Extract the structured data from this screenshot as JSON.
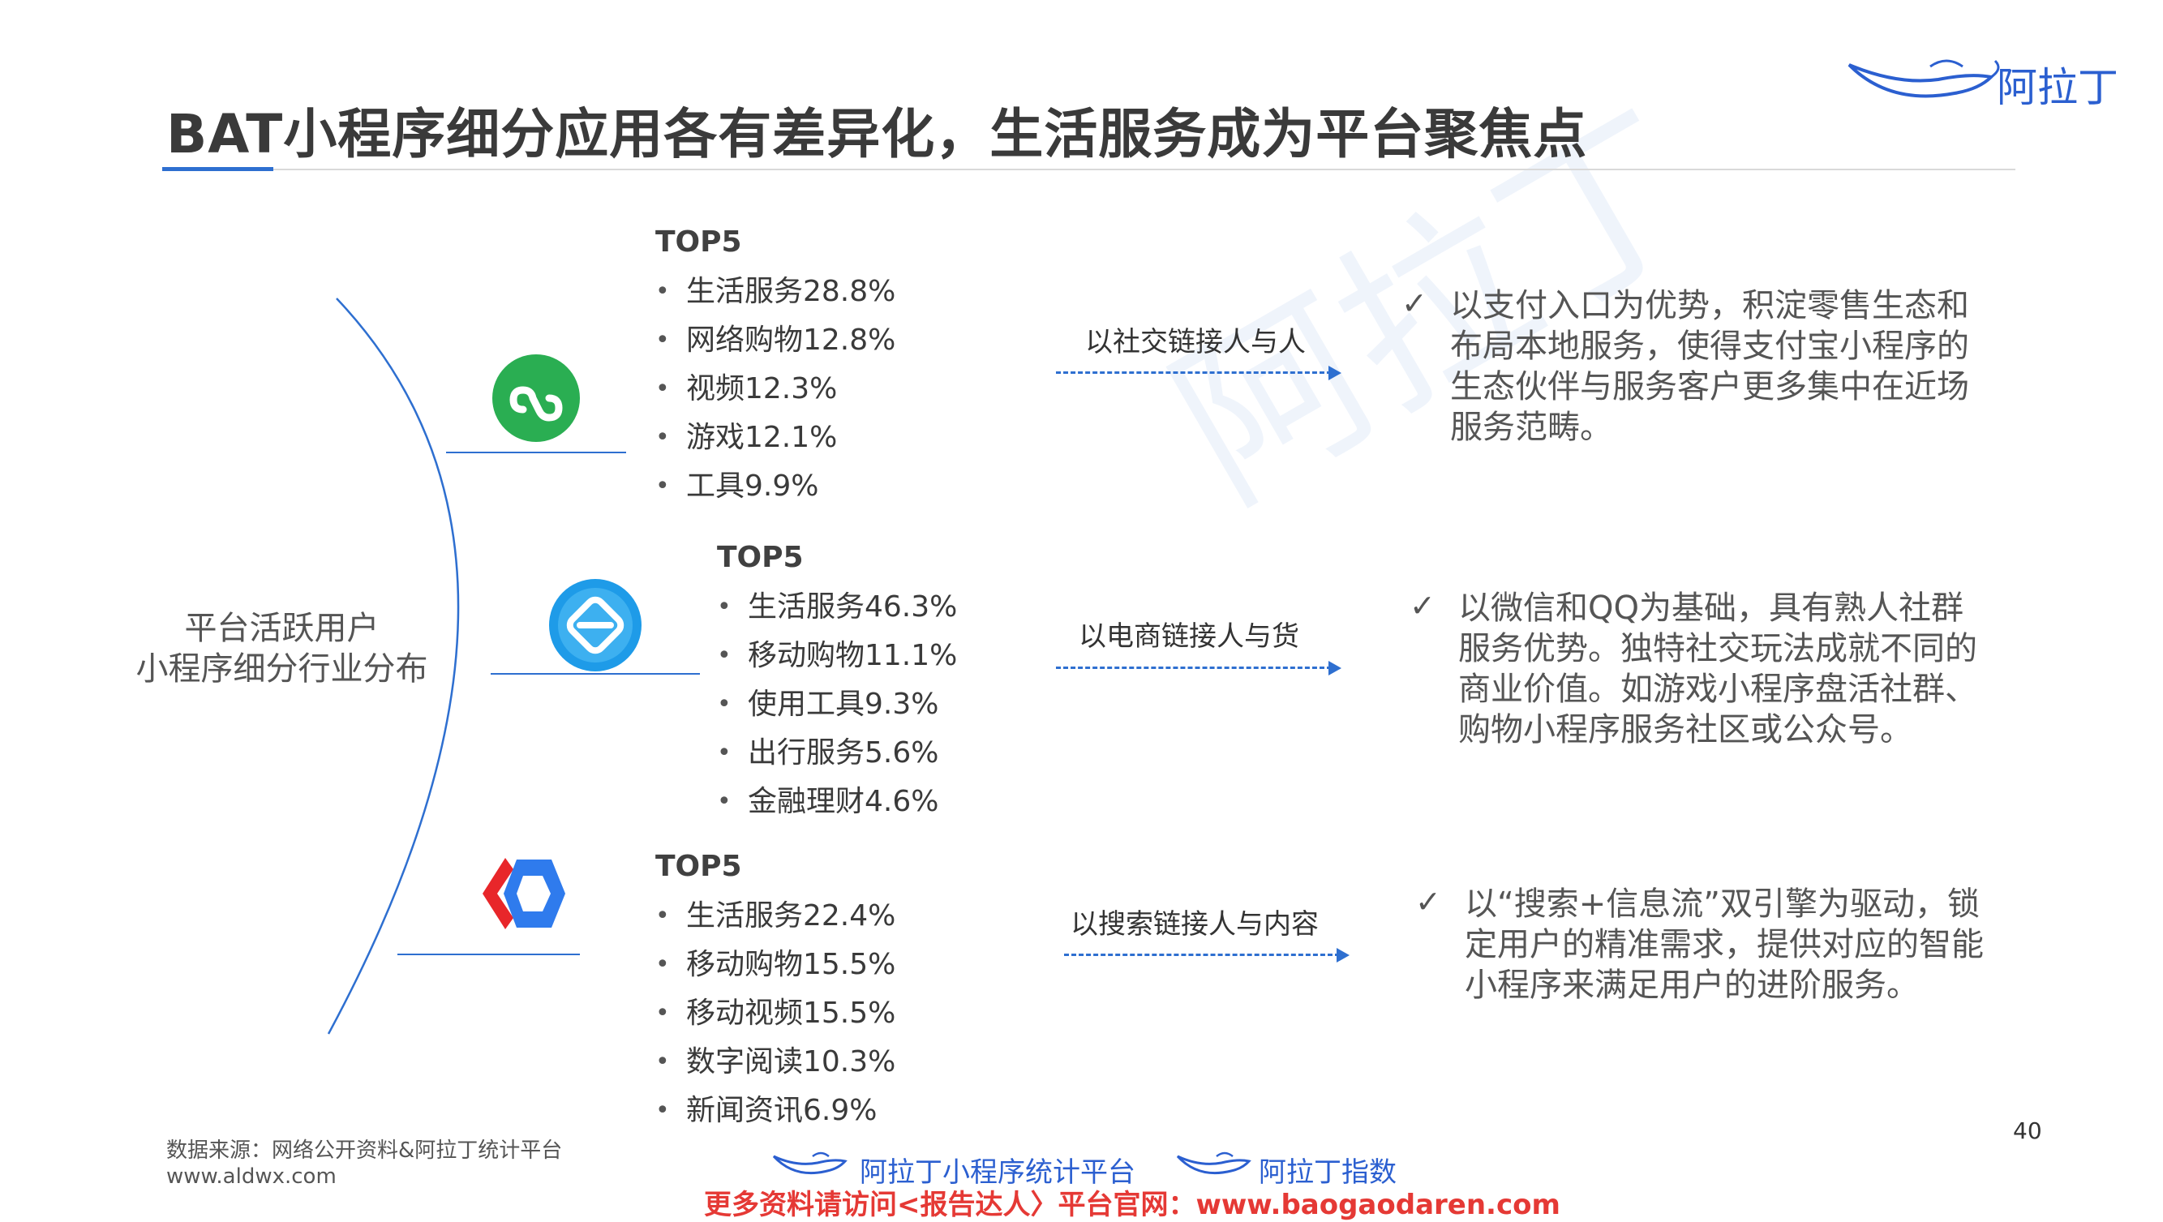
{
  "title": "BAT小程序细分应用各有差异化，生活服务成为平台聚焦点",
  "brand": {
    "logo_text": "阿拉丁",
    "watermark_text": "阿拉丁",
    "accent_color": "#2e6fd0"
  },
  "center_label": {
    "line1": "平台活跃用户",
    "line2": "小程序细分行业分布"
  },
  "platforms": [
    {
      "icon": "wechat-miniprogram-icon",
      "heading": "TOP5",
      "items": [
        "生活服务28.8%",
        "网络购物12.8%",
        "视频12.3%",
        "游戏12.1%",
        "工具9.9%"
      ],
      "link_label": "以社交链接人与人",
      "check": "✓",
      "description": "以支付入口为优势，积淀零售生态和布局本地服务，使得支付宝小程序的生态伙伴与服务客户更多集中在近场服务范畴。"
    },
    {
      "icon": "alipay-miniprogram-icon",
      "heading": "TOP5",
      "items": [
        "生活服务46.3%",
        "移动购物11.1%",
        "使用工具9.3%",
        "出行服务5.6%",
        "金融理财4.6%"
      ],
      "link_label": "以电商链接人与货",
      "check": "✓",
      "description": "以微信和QQ为基础，具有熟人社群服务优势。独特社交玩法成就不同的商业价值。如游戏小程序盘活社群、购物小程序服务社区或公众号。"
    },
    {
      "icon": "baidu-smartprogram-icon",
      "heading": "TOP5",
      "items": [
        "生活服务22.4%",
        "移动购物15.5%",
        "移动视频15.5%",
        "数字阅读10.3%",
        "新闻资讯6.9%"
      ],
      "link_label": "以搜索链接人与内容",
      "check": "✓",
      "description": "以“搜索+信息流”双引擎为驱动，锁定用户的精准需求，提供对应的智能小程序来满足用户的进阶服务。"
    }
  ],
  "footer": {
    "source": "数据来源：网络公开资料&阿拉丁统计平台",
    "source_url": "www.aldwx.com",
    "page_number": "40",
    "brand_a": "阿拉丁小程序统计平台",
    "brand_b": "阿拉丁指数",
    "promo": "更多资料请访问<报告达人〉平台官网：www.baogaodaren.com"
  }
}
